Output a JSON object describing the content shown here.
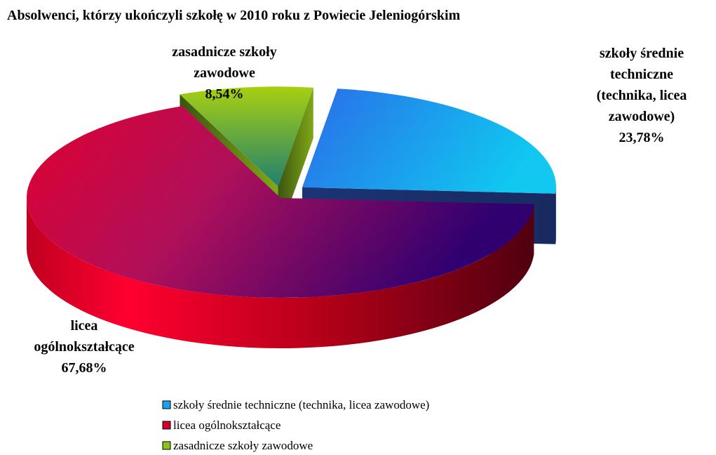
{
  "chart_data": {
    "type": "pie3d",
    "title": "Absolwenci, którzy ukończyli szkołę w 2010 roku z Powiecie Jeleniogórskim",
    "categories": [
      "szkoły średnie techniczne (technika, licea zawodowe)",
      "licea ogólnokształcące",
      "zasadnicze szkoły zawodowe"
    ],
    "values": [
      23.78,
      67.68,
      8.54
    ],
    "value_labels": [
      "23,78%",
      "67,68%",
      "8,54%"
    ],
    "colors": [
      "#1aa3ee",
      "#d8002a",
      "#8cc220"
    ],
    "legend": "bottom"
  }
}
